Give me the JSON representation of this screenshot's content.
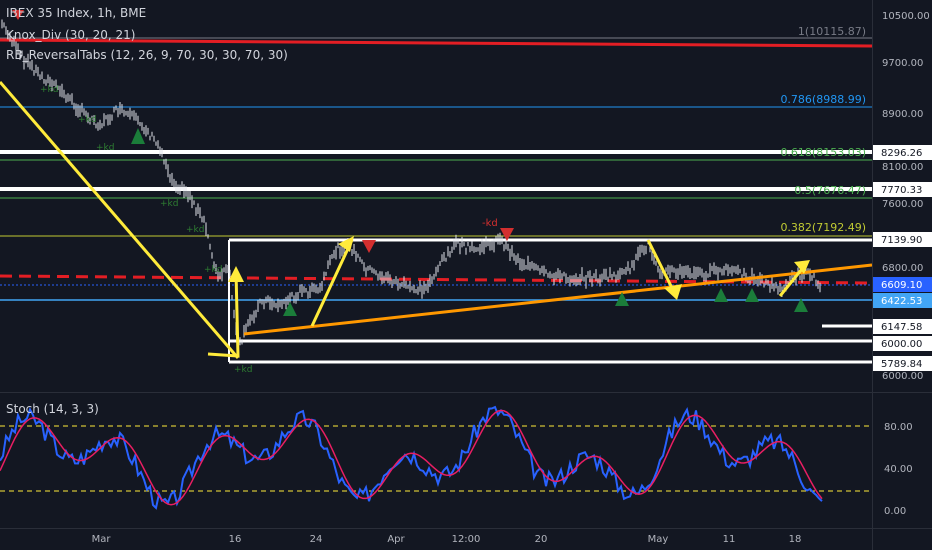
{
  "legend": {
    "main": "IBEX 35 Index, 1h, BME",
    "ind1": "Knox_Div (30, 20, 21)",
    "ind2": "RB_ReversalTabs (12, 26, 9, 70, 30, 30, 70, 30)",
    "stoch": "Stoch (14, 3, 3)"
  },
  "price_axis": {
    "ticks": [
      "10500.00",
      "9700.00",
      "8900.00",
      "8100.00",
      "7600.00",
      "6800.00",
      "6000.00"
    ],
    "badges": [
      {
        "label": "8296.26",
        "style": "white"
      },
      {
        "label": "7770.33",
        "style": "white"
      },
      {
        "label": "7139.90",
        "style": "white"
      },
      {
        "label": "6609.10",
        "style": "current"
      },
      {
        "label": "6422.53",
        "style": "blue"
      },
      {
        "label": "6147.58",
        "style": "white"
      },
      {
        "label": "6000.00",
        "style": "white"
      },
      {
        "label": "5789.84",
        "style": "white"
      }
    ]
  },
  "fib_labels": [
    {
      "label": "1(10115.87)",
      "color": "#787b86"
    },
    {
      "label": "0.786(8988.99)",
      "color": "#2196f3"
    },
    {
      "label": "0.618(8153.03)",
      "color": "#4caf50"
    },
    {
      "label": "0.5(7676.47)",
      "color": "#4caf50"
    },
    {
      "label": "0.382(7192.49)",
      "color": "#c0ca33"
    }
  ],
  "annotations": {
    "kd": "-kd",
    "plus_kd": "+kd"
  },
  "stoch_axis": {
    "ticks": [
      "80.00",
      "40.00",
      "0.00"
    ]
  },
  "time_axis": {
    "ticks": [
      "Mar",
      "16",
      "24",
      "Apr",
      "12:00",
      "20",
      "May",
      "11",
      "18"
    ]
  },
  "colors": {
    "background": "#131722",
    "resistance": "#e31e24",
    "trend_yellow": "#ffeb3b",
    "trend_orange": "#ff9800",
    "k_line": "#2962ff",
    "d_line": "#e91e63",
    "arrow_up": "#1b7d3a",
    "arrow_down": "#d32f2f"
  }
}
